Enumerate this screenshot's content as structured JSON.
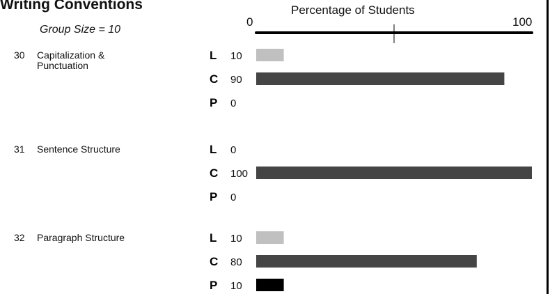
{
  "title": "Writing Conventions",
  "group_size_label": "Group Size = 10",
  "colors": {
    "L": "#c0c0c0",
    "C": "#454545",
    "P": "#000000"
  },
  "chart_data": {
    "type": "bar",
    "orientation": "horizontal",
    "title": "Writing Conventions",
    "axis_title": "Percentage of Students",
    "xlim": [
      0,
      100
    ],
    "ticks": [
      "0",
      "100"
    ],
    "skills": [
      {
        "number": "30",
        "name": "Capitalization & Punctuation",
        "rows": [
          {
            "letter": "L",
            "value": 10
          },
          {
            "letter": "C",
            "value": 90
          },
          {
            "letter": "P",
            "value": 0
          }
        ]
      },
      {
        "number": "31",
        "name": "Sentence Structure",
        "rows": [
          {
            "letter": "L",
            "value": 0
          },
          {
            "letter": "C",
            "value": 100
          },
          {
            "letter": "P",
            "value": 0
          }
        ]
      },
      {
        "number": "32",
        "name": "Paragraph Structure",
        "rows": [
          {
            "letter": "L",
            "value": 10
          },
          {
            "letter": "C",
            "value": 80
          },
          {
            "letter": "P",
            "value": 10
          }
        ]
      }
    ]
  }
}
